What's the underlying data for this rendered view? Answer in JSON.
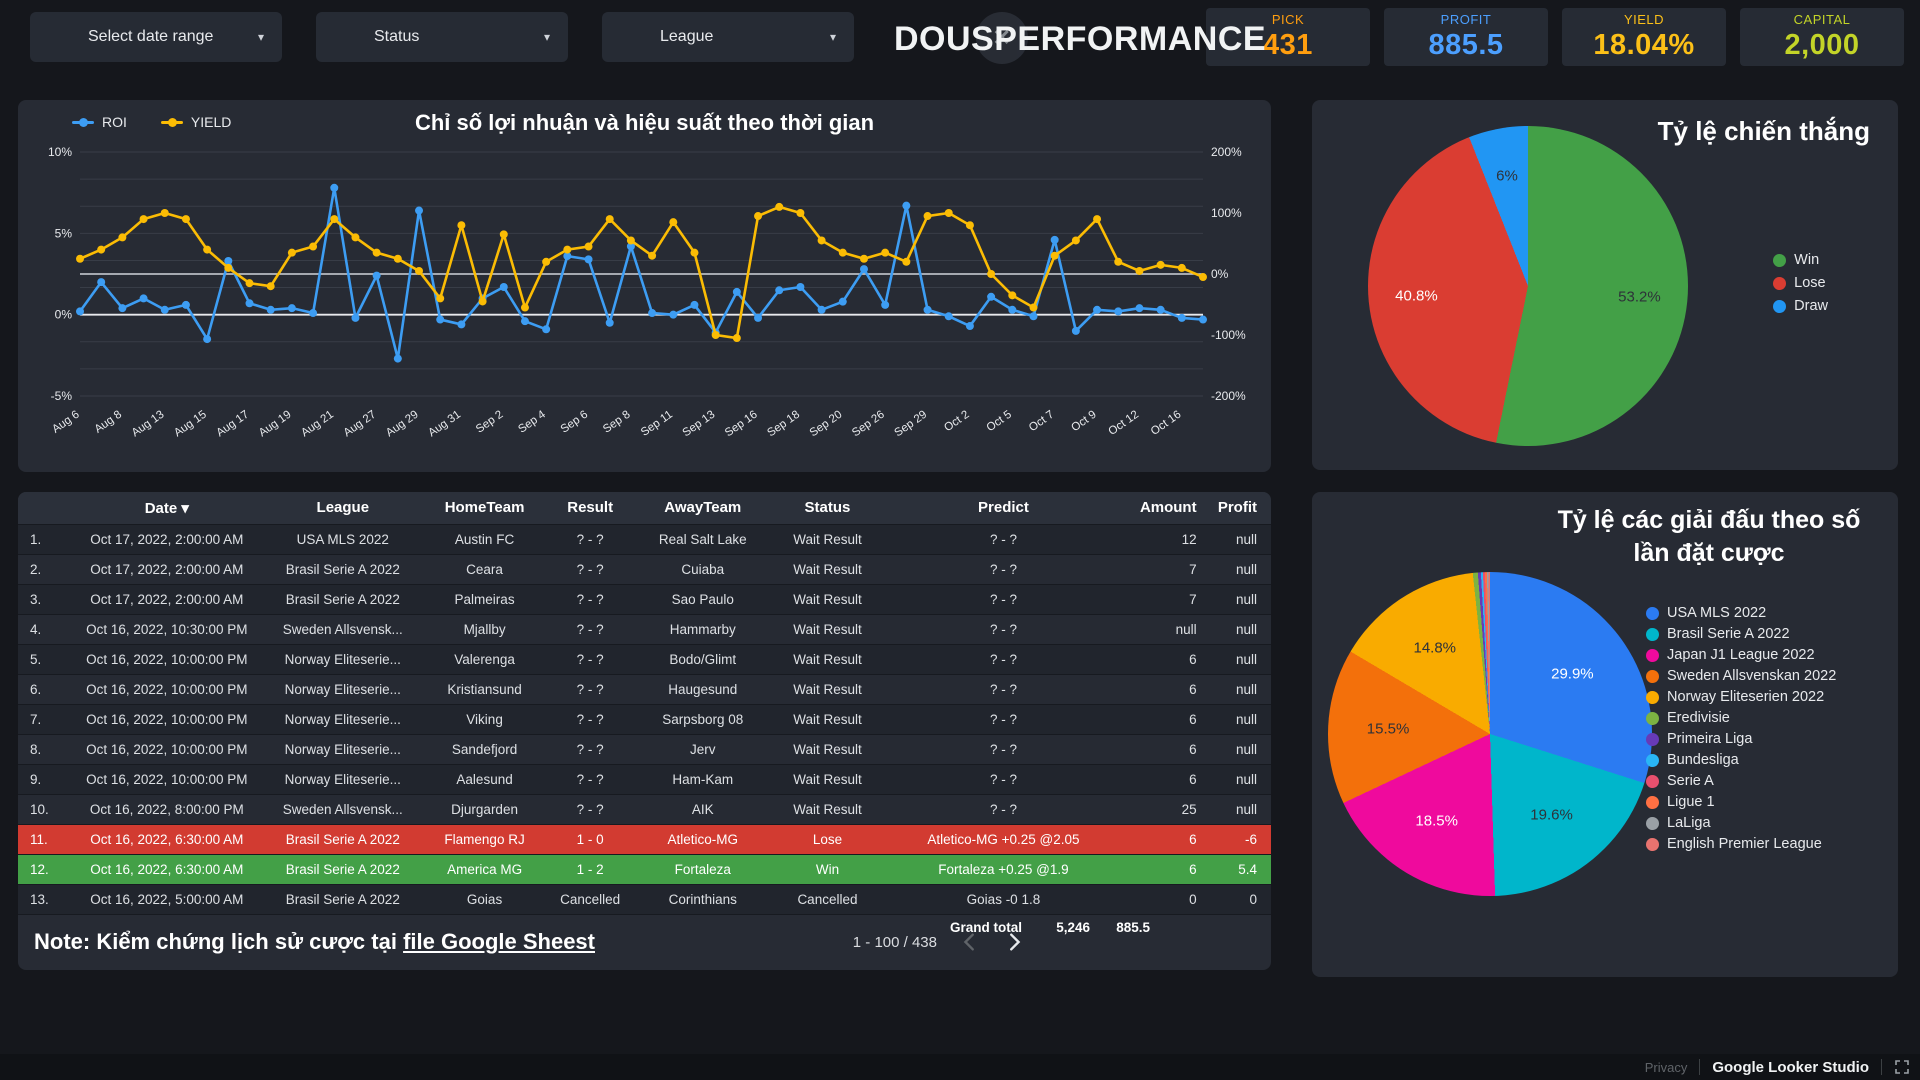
{
  "topbar": {
    "filters": [
      {
        "label": "Select date range"
      },
      {
        "label": "Status"
      },
      {
        "label": "League"
      }
    ],
    "title_part1": "DOUS",
    "title_part2": "PERFORMANCE",
    "logo_glyph": "✕",
    "scorecards": [
      {
        "label": "PICK",
        "value": "431",
        "color": "#ff9e0f"
      },
      {
        "label": "PROFIT",
        "value": "885.5",
        "color": "#4c9ffe"
      },
      {
        "label": "YIELD",
        "value": "18.04%",
        "color": "#fcc018"
      },
      {
        "label": "CAPITAL",
        "value": "2,000",
        "color": "#c3d428"
      }
    ]
  },
  "chart_data": [
    {
      "id": "timeseries",
      "type": "line",
      "title": "Chỉ số lợi nhuận và hiệu suất theo thời gian",
      "x_labels": [
        "Aug 6",
        "Aug 8",
        "Aug 13",
        "Aug 15",
        "Aug 17",
        "Aug 19",
        "Aug 21",
        "Aug 27",
        "Aug 29",
        "Aug 31",
        "Sep 2",
        "Sep 4",
        "Sep 6",
        "Sep 8",
        "Sep 11",
        "Sep 13",
        "Sep 16",
        "Sep 18",
        "Sep 20",
        "Sep 26",
        "Sep 29",
        "Oct 2",
        "Oct 5",
        "Oct 7",
        "Oct 9",
        "Oct 12",
        "Oct 16"
      ],
      "label_every": 2,
      "left_axis": {
        "ticks": [
          10,
          5,
          0,
          -5
        ],
        "tick_labels": [
          "10%",
          "5%",
          "0%",
          "-5%"
        ],
        "min": -5,
        "max": 10
      },
      "right_axis": {
        "ticks": [
          200,
          100,
          0,
          -100,
          -200
        ],
        "tick_labels": [
          "200%",
          "100%",
          "0%",
          "-100%",
          "-200%"
        ],
        "min": -200,
        "max": 200
      },
      "series": [
        {
          "name": "ROI",
          "axis": "left",
          "color": "#3d9df3",
          "values": [
            0.2,
            2.0,
            0.4,
            1.0,
            0.3,
            0.6,
            -1.5,
            3.3,
            0.7,
            0.3,
            0.4,
            0.1,
            7.8,
            -0.2,
            2.4,
            -2.7,
            6.4,
            -0.3,
            -0.6,
            1.0,
            1.7,
            -0.4,
            -0.9,
            3.6,
            3.4,
            -0.5,
            4.2,
            0.1,
            0.0,
            0.6,
            -1.1,
            1.4,
            -0.2,
            1.5,
            1.7,
            0.3,
            0.8,
            2.8,
            0.6,
            6.7,
            0.3,
            -0.1,
            -0.7,
            1.1,
            0.3,
            -0.1,
            4.6,
            -1.0,
            0.3,
            0.2,
            0.4,
            0.3,
            -0.2,
            -0.3
          ]
        },
        {
          "name": "YIELD",
          "axis": "right",
          "color": "#fbbc04",
          "values": [
            25,
            40,
            60,
            90,
            100,
            90,
            40,
            10,
            -15,
            -20,
            35,
            45,
            90,
            60,
            35,
            25,
            5,
            -40,
            80,
            -45,
            65,
            -55,
            20,
            40,
            45,
            90,
            55,
            30,
            85,
            35,
            -100,
            -105,
            95,
            110,
            100,
            55,
            35,
            25,
            35,
            20,
            95,
            100,
            80,
            0,
            -35,
            -55,
            30,
            55,
            90,
            20,
            5,
            15,
            10,
            -5
          ]
        }
      ]
    },
    {
      "id": "win-rate",
      "type": "pie",
      "title": "Tỷ lệ chiến thắng",
      "slices": [
        {
          "label": "Win",
          "value": 53.2,
          "color": "#43a047",
          "pct_label": "53.2%",
          "label_color": "#2e3239"
        },
        {
          "label": "Lose",
          "value": 40.8,
          "color": "#da3d32",
          "pct_label": "40.8%",
          "label_color": "#ffffff"
        },
        {
          "label": "Draw",
          "value": 6.0,
          "color": "#2196f3",
          "pct_label": "6%",
          "label_color": "#2e3239"
        }
      ]
    },
    {
      "id": "league-share",
      "type": "pie",
      "title_line1": "Tỷ lệ các giải đấu theo số",
      "title_line2": "lần đặt cược",
      "slices": [
        {
          "label": "USA MLS 2022",
          "value": 29.9,
          "color": "#2b7bf2",
          "pct_label": "29.9%",
          "label_color": "#ffffff"
        },
        {
          "label": "Brasil Serie A 2022",
          "value": 19.6,
          "color": "#00b6cb",
          "pct_label": "19.6%",
          "label_color": "#2e3239"
        },
        {
          "label": "Japan J1 League 2022",
          "value": 18.5,
          "color": "#ef0a9d",
          "pct_label": "18.5%",
          "label_color": "#ffffff"
        },
        {
          "label": "Sweden Allsvenskan 2022",
          "value": 15.5,
          "color": "#f3700b",
          "pct_label": "15.5%",
          "label_color": "#2e3239"
        },
        {
          "label": "Norway Eliteserien 2022",
          "value": 14.8,
          "color": "#f9ab00",
          "pct_label": "14.8%",
          "label_color": "#2e3239"
        },
        {
          "label": "Eredivisie",
          "value": 0.5,
          "color": "#7cb342"
        },
        {
          "label": "Primeira Liga",
          "value": 0.3,
          "color": "#673ab7"
        },
        {
          "label": "Bundesliga",
          "value": 0.2,
          "color": "#29b6f6"
        },
        {
          "label": "Serie A",
          "value": 0.2,
          "color": "#e8506e"
        },
        {
          "label": "Ligue 1",
          "value": 0.2,
          "color": "#ff7043"
        },
        {
          "label": "LaLiga",
          "value": 0.15,
          "color": "#9aa0a6"
        },
        {
          "label": "English Premier League",
          "value": 0.15,
          "color": "#e8736f"
        }
      ]
    }
  ],
  "table": {
    "columns": [
      "Date",
      "League",
      "HomeTeam",
      "Result",
      "AwayTeam",
      "Status",
      "Predict",
      "Amount",
      "Profit"
    ],
    "sort_arrow": "▾",
    "rows": [
      {
        "num": "1.",
        "date": "Oct 17, 2022, 2:00:00 AM",
        "league": "USA MLS 2022",
        "home": "Austin FC",
        "result": "? - ?",
        "away": "Real Salt Lake",
        "status": "Wait Result",
        "predict": "? - ?",
        "amount": "12",
        "profit": "null",
        "style": "normal"
      },
      {
        "num": "2.",
        "date": "Oct 17, 2022, 2:00:00 AM",
        "league": "Brasil Serie A 2022",
        "home": "Ceara",
        "result": "? - ?",
        "away": "Cuiaba",
        "status": "Wait Result",
        "predict": "? - ?",
        "amount": "7",
        "profit": "null",
        "style": "normal"
      },
      {
        "num": "3.",
        "date": "Oct 17, 2022, 2:00:00 AM",
        "league": "Brasil Serie A 2022",
        "home": "Palmeiras",
        "result": "? - ?",
        "away": "Sao Paulo",
        "status": "Wait Result",
        "predict": "? - ?",
        "amount": "7",
        "profit": "null",
        "style": "normal"
      },
      {
        "num": "4.",
        "date": "Oct 16, 2022, 10:30:00 PM",
        "league": "Sweden Allsvensk...",
        "home": "Mjallby",
        "result": "? - ?",
        "away": "Hammarby",
        "status": "Wait Result",
        "predict": "? - ?",
        "amount": "null",
        "profit": "null",
        "style": "normal"
      },
      {
        "num": "5.",
        "date": "Oct 16, 2022, 10:00:00 PM",
        "league": "Norway Eliteserie...",
        "home": "Valerenga",
        "result": "? - ?",
        "away": "Bodo/Glimt",
        "status": "Wait Result",
        "predict": "? - ?",
        "amount": "6",
        "profit": "null",
        "style": "normal"
      },
      {
        "num": "6.",
        "date": "Oct 16, 2022, 10:00:00 PM",
        "league": "Norway Eliteserie...",
        "home": "Kristiansund",
        "result": "? - ?",
        "away": "Haugesund",
        "status": "Wait Result",
        "predict": "? - ?",
        "amount": "6",
        "profit": "null",
        "style": "normal"
      },
      {
        "num": "7.",
        "date": "Oct 16, 2022, 10:00:00 PM",
        "league": "Norway Eliteserie...",
        "home": "Viking",
        "result": "? - ?",
        "away": "Sarpsborg 08",
        "status": "Wait Result",
        "predict": "? - ?",
        "amount": "6",
        "profit": "null",
        "style": "normal"
      },
      {
        "num": "8.",
        "date": "Oct 16, 2022, 10:00:00 PM",
        "league": "Norway Eliteserie...",
        "home": "Sandefjord",
        "result": "? - ?",
        "away": "Jerv",
        "status": "Wait Result",
        "predict": "? - ?",
        "amount": "6",
        "profit": "null",
        "style": "normal"
      },
      {
        "num": "9.",
        "date": "Oct 16, 2022, 10:00:00 PM",
        "league": "Norway Eliteserie...",
        "home": "Aalesund",
        "result": "? - ?",
        "away": "Ham-Kam",
        "status": "Wait Result",
        "predict": "? - ?",
        "amount": "6",
        "profit": "null",
        "style": "normal"
      },
      {
        "num": "10.",
        "date": "Oct 16, 2022, 8:00:00 PM",
        "league": "Sweden Allsvensk...",
        "home": "Djurgarden",
        "result": "? - ?",
        "away": "AIK",
        "status": "Wait Result",
        "predict": "? - ?",
        "amount": "25",
        "profit": "null",
        "style": "normal"
      },
      {
        "num": "11.",
        "date": "Oct 16, 2022, 6:30:00 AM",
        "league": "Brasil Serie A 2022",
        "home": "Flamengo RJ",
        "result": "1 - 0",
        "away": "Atletico-MG",
        "status": "Lose",
        "predict": "Atletico-MG +0.25 @2.05",
        "amount": "6",
        "profit": "-6",
        "style": "lose"
      },
      {
        "num": "12.",
        "date": "Oct 16, 2022, 6:30:00 AM",
        "league": "Brasil Serie A 2022",
        "home": "America MG",
        "result": "1 - 2",
        "away": "Fortaleza",
        "status": "Win",
        "predict": "Fortaleza +0.25 @1.9",
        "amount": "6",
        "profit": "5.4",
        "style": "win"
      },
      {
        "num": "13.",
        "date": "Oct 16, 2022, 5:00:00 AM",
        "league": "Brasil Serie A 2022",
        "home": "Goias",
        "result": "Cancelled",
        "away": "Corinthians",
        "status": "Cancelled",
        "predict": "Goias -0 1.8",
        "amount": "0",
        "profit": "0",
        "style": "normal"
      }
    ],
    "grand_total": {
      "label": "Grand total",
      "amount": "5,246",
      "profit": "885.5"
    },
    "pagination": {
      "range": "1 - 100 / 438"
    }
  },
  "note": {
    "prefix": "Note: Kiểm chứng lịch sử cược tại ",
    "link_text": "file Google Sheest",
    "link_color": "#bd8bf0"
  },
  "footer": {
    "privacy": "Privacy",
    "brand": "Google Looker Studio"
  }
}
